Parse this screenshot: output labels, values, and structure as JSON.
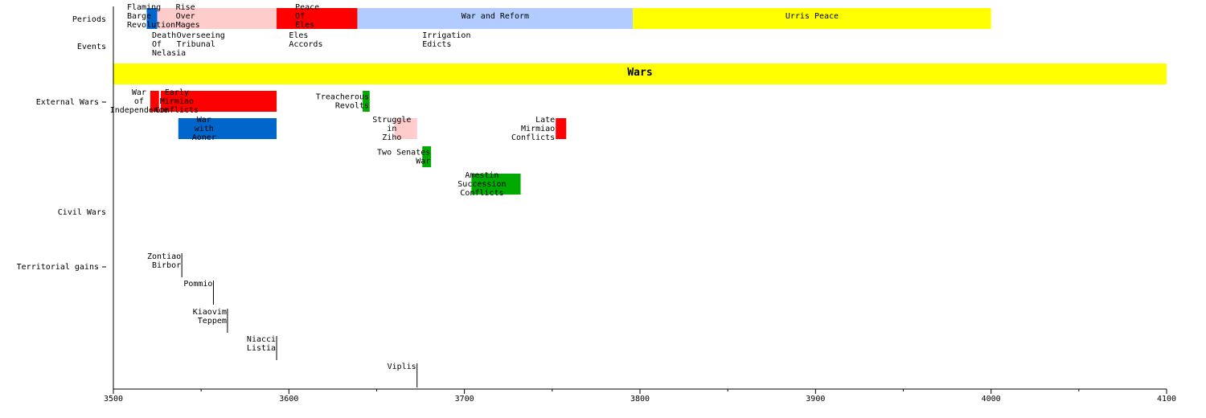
{
  "chart_data": {
    "type": "timeline",
    "x_range": [
      3500,
      4100
    ],
    "x_ticks": [
      3500,
      3600,
      3700,
      3800,
      3900,
      4000,
      4100
    ],
    "row_labels": {
      "periods": "Periods",
      "events": "Events",
      "external": "External Wars",
      "civil": "Civil Wars",
      "territorial": "Territorial gains"
    },
    "periods": [
      {
        "label": "Flaming Barge Revolution",
        "start": 3519,
        "end": 3525,
        "color": "#0066cc"
      },
      {
        "label": "Rise Over Mages",
        "start": 3525,
        "end": 3593,
        "color": "#ffcccc"
      },
      {
        "label": "Peace Of Eles",
        "start": 3593,
        "end": 3639,
        "color": "#ff0000"
      },
      {
        "label": "War and Reform",
        "start": 3639,
        "end": 3796,
        "color": "#b3ccff"
      },
      {
        "label": "Urris Peace",
        "start": 3796,
        "end": 4000,
        "color": "#ffff00"
      }
    ],
    "events": [
      {
        "label": "Death Of Nelasia",
        "year": 3522
      },
      {
        "label": "Overseeing Tribunal",
        "year": 3536
      },
      {
        "label": "Eles Accords",
        "year": 3600
      },
      {
        "label": "Irrigation Edicts",
        "year": 3676
      }
    ],
    "wars_banner": {
      "label": "Wars",
      "start": 3500,
      "end": 4100,
      "color": "#ffff00"
    },
    "external_wars": [
      {
        "label": "War of Independence",
        "start": 3521,
        "end": 3526,
        "color": "#ff0000",
        "lane": 0
      },
      {
        "label": "Early Mirmiao Conflicts",
        "start": 3527,
        "end": 3593,
        "color": "#ff0000",
        "lane": 0
      },
      {
        "label": "Treacherous Revolts",
        "start": 3642,
        "end": 3646,
        "color": "#00aa00",
        "lane": 0
      },
      {
        "label": "War with Aoner",
        "start": 3537,
        "end": 3593,
        "color": "#0066cc",
        "lane": 1
      },
      {
        "label": "Struggle in Ziho",
        "start": 3660,
        "end": 3673,
        "color": "#ffcccc",
        "lane": 1
      },
      {
        "label": "Late Mirmiao Conflicts",
        "start": 3752,
        "end": 3758,
        "color": "#ff0000",
        "lane": 1
      },
      {
        "label": "Two Senates War",
        "start": 3676,
        "end": 3681,
        "color": "#00aa00",
        "lane": 2
      },
      {
        "label": "Amestin Succession Conflicts",
        "start": 3704,
        "end": 3732,
        "color": "#00aa00",
        "lane": 3
      }
    ],
    "territorial_gains": [
      {
        "label": "Zontiao Birbor",
        "year": 3539
      },
      {
        "label": "Pommio",
        "year": 3557
      },
      {
        "label": "Kiaovim Teppem",
        "year": 3565
      },
      {
        "label": "Niacci Listia",
        "year": 3593
      },
      {
        "label": "Viplis",
        "year": 3673
      }
    ]
  }
}
